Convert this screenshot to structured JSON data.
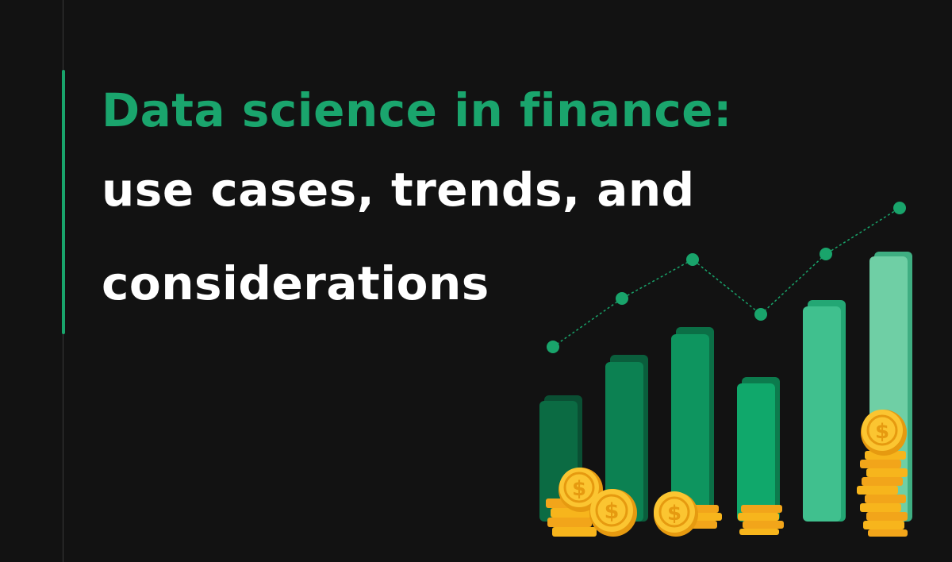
{
  "headline": {
    "line1": "Data science in finance:",
    "line2": "use cases, trends, and",
    "line3": "considerations"
  },
  "colors": {
    "background": "#121212",
    "accent_green": "#1aa56d",
    "headline_white": "#ffffff",
    "coin_gold": "#f5b800"
  },
  "illustration": {
    "icons": [
      "bar-chart-icon",
      "trend-line-icon",
      "gold-coin-icon",
      "dollar-sign-icon"
    ]
  }
}
